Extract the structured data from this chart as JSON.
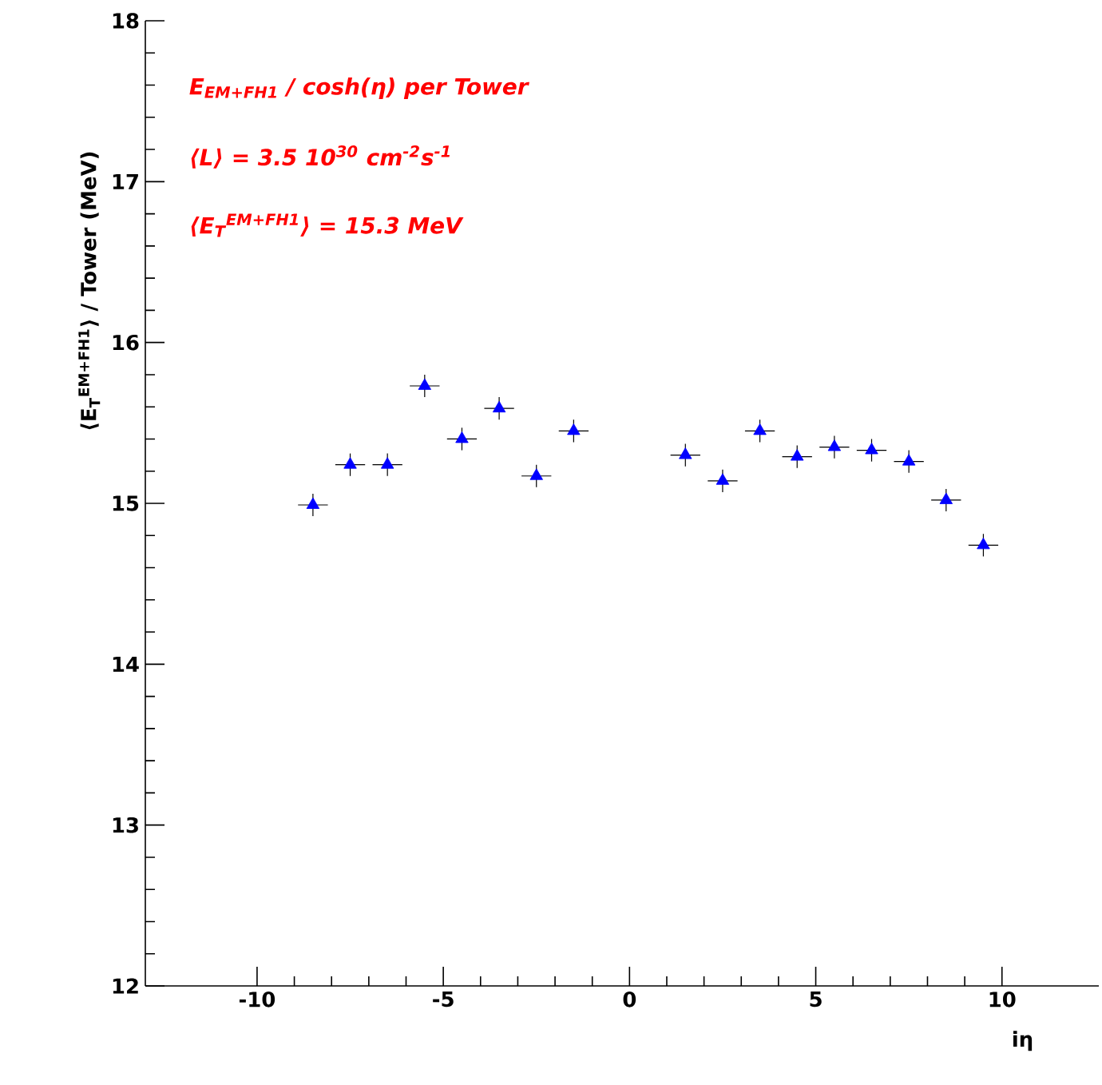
{
  "chart_data": {
    "type": "scatter",
    "xlabel": "iη",
    "ylabel": "⟨E$_{T}$$^{EM+FH1}$⟩ / Tower (MeV)",
    "annotations": [
      "E$_{EM+FH1}$ / cosh(η) per Tower",
      "⟨L⟩ = 3.5 10$^{30}$ cm$^{-2}$s$^{-1}$",
      "⟨E$_{T}$$^{EM+FH1}$⟩ = 15.3 MeV"
    ],
    "x": [
      -8.5,
      -7.5,
      -6.5,
      -5.5,
      -4.5,
      -3.5,
      -2.5,
      -1.5,
      1.5,
      2.5,
      3.5,
      4.5,
      5.5,
      6.5,
      7.5,
      8.5,
      9.5
    ],
    "values": [
      14.99,
      15.24,
      15.24,
      15.73,
      15.4,
      15.59,
      15.17,
      15.45,
      15.3,
      15.14,
      15.45,
      15.29,
      15.35,
      15.33,
      15.26,
      15.02,
      14.74
    ],
    "errors": [
      0.07,
      0.07,
      0.07,
      0.07,
      0.07,
      0.07,
      0.07,
      0.07,
      0.07,
      0.07,
      0.07,
      0.07,
      0.07,
      0.07,
      0.07,
      0.07,
      0.07
    ],
    "xerrors": [
      0.4,
      0.4,
      0.4,
      0.4,
      0.4,
      0.4,
      0.4,
      0.4,
      0.4,
      0.4,
      0.4,
      0.4,
      0.4,
      0.4,
      0.4,
      0.4,
      0.4
    ],
    "color": "#0000ff",
    "marker": "triangle",
    "xlim": [
      -13,
      12.6
    ],
    "ylim": [
      12,
      18
    ],
    "xticks": [
      -10,
      -5,
      0,
      5,
      10
    ],
    "yticks": [
      12,
      13,
      14,
      15,
      16,
      17,
      18
    ]
  }
}
